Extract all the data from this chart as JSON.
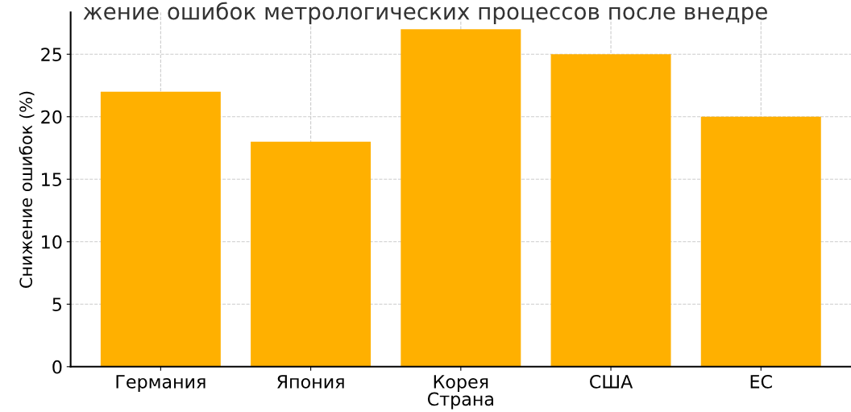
{
  "chart_data": {
    "type": "bar",
    "title": "жение ошибок метрологических процессов после внедре",
    "xlabel": "Страна",
    "ylabel": "Снижение ошибок (%)",
    "categories": [
      "Германия",
      "Япония",
      "Корея",
      "США",
      "ЕС"
    ],
    "values": [
      22,
      18,
      27,
      25,
      20
    ],
    "color": "#ffb000",
    "ylim": [
      0,
      28.35
    ],
    "yticks": [
      0,
      5,
      10,
      15,
      20,
      25
    ],
    "grid": true,
    "line_style": "dashed"
  }
}
